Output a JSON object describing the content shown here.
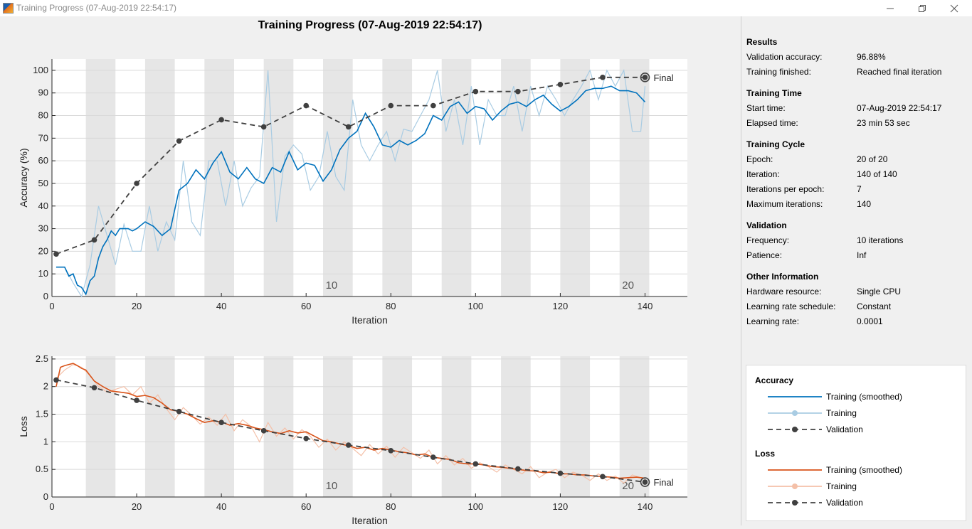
{
  "window": {
    "title": "Training Progress (07-Aug-2019 22:54:17)",
    "controls": {
      "minimize_icon": "minimize-icon",
      "restore_icon": "restore-icon",
      "close_icon": "close-icon"
    }
  },
  "colors": {
    "acc_smoothed": "#0072bd",
    "acc_training": "#a9cce3",
    "loss_smoothed": "#d95319",
    "loss_training": "#f4c0a8",
    "validation": "#404040",
    "epoch_band": "#e6e6e6",
    "grid": "#d9d9d9"
  },
  "chart_data": [
    {
      "type": "line",
      "title": "Training Progress (07-Aug-2019 22:54:17)",
      "xlabel": "Iteration",
      "ylabel": "Accuracy (%)",
      "xlim": [
        0,
        150
      ],
      "ylim": [
        0,
        105
      ],
      "xticks": [
        0,
        20,
        40,
        60,
        80,
        100,
        120,
        140
      ],
      "yticks": [
        0,
        10,
        20,
        30,
        40,
        50,
        60,
        70,
        80,
        90,
        100
      ],
      "grid": true,
      "epoch_shading": {
        "iterations_per_epoch": 7,
        "shaded_epochs": [
          2,
          4,
          6,
          8,
          10,
          12,
          14,
          16,
          18,
          20
        ]
      },
      "epoch_labels": [
        {
          "iteration": 66,
          "label": "10"
        },
        {
          "iteration": 136,
          "label": "20"
        }
      ],
      "final_label": "Final",
      "series": [
        {
          "name": "Training (smoothed)",
          "x": [
            1,
            2,
            3,
            4,
            5,
            6,
            7,
            8,
            9,
            10,
            11,
            12,
            13,
            14,
            15,
            16,
            17,
            18,
            19,
            20,
            22,
            24,
            26,
            28,
            30,
            32,
            34,
            36,
            38,
            40,
            42,
            44,
            46,
            48,
            50,
            52,
            54,
            56,
            58,
            60,
            62,
            64,
            66,
            68,
            70,
            72,
            74,
            76,
            78,
            80,
            82,
            84,
            86,
            88,
            90,
            92,
            94,
            96,
            98,
            100,
            102,
            104,
            106,
            108,
            110,
            112,
            114,
            116,
            118,
            120,
            122,
            124,
            126,
            128,
            130,
            132,
            134,
            136,
            138,
            140
          ],
          "y": [
            13,
            13,
            13,
            9,
            10,
            5,
            4,
            1,
            7,
            9,
            17,
            22,
            25,
            29,
            27,
            30,
            30,
            30,
            29,
            30,
            33,
            31,
            27,
            30,
            47,
            50,
            56,
            52,
            59,
            64,
            55,
            52,
            57,
            52,
            50,
            57,
            55,
            64,
            56,
            59,
            58,
            51,
            56,
            65,
            70,
            73,
            81,
            75,
            67,
            66,
            69,
            67,
            69,
            72,
            80,
            78,
            84,
            86,
            81,
            84,
            83,
            78,
            82,
            85,
            86,
            84,
            87,
            89,
            85,
            82,
            84,
            87,
            91,
            92,
            92,
            93,
            91,
            91,
            90,
            86
          ]
        },
        {
          "name": "Training",
          "x": [
            1,
            3,
            5,
            7,
            9,
            11,
            13,
            15,
            17,
            19,
            21,
            23,
            25,
            27,
            29,
            31,
            33,
            35,
            37,
            39,
            41,
            43,
            45,
            47,
            49,
            51,
            53,
            55,
            57,
            59,
            61,
            63,
            65,
            67,
            69,
            71,
            73,
            75,
            77,
            79,
            81,
            83,
            85,
            87,
            89,
            91,
            93,
            95,
            97,
            99,
            101,
            103,
            105,
            107,
            109,
            111,
            113,
            115,
            117,
            119,
            121,
            123,
            125,
            127,
            129,
            131,
            133,
            135,
            137,
            139,
            140
          ],
          "y": [
            13,
            13,
            6,
            0,
            14,
            40,
            27,
            14,
            32,
            20,
            20,
            40,
            20,
            33,
            25,
            60,
            33,
            27,
            60,
            60,
            40,
            60,
            40,
            48,
            53,
            100,
            33,
            62,
            67,
            63,
            47,
            53,
            73,
            53,
            47,
            87,
            67,
            60,
            67,
            73,
            60,
            74,
            73,
            80,
            87,
            100,
            73,
            87,
            67,
            93,
            67,
            87,
            80,
            80,
            93,
            73,
            93,
            80,
            93,
            87,
            80,
            87,
            93,
            100,
            87,
            100,
            93,
            100,
            73,
            73,
            93
          ]
        },
        {
          "name": "Validation",
          "x": [
            1,
            10,
            20,
            30,
            40,
            50,
            60,
            70,
            80,
            90,
            100,
            110,
            120,
            130,
            140
          ],
          "y": [
            18.75,
            25,
            50,
            68.75,
            78.13,
            75,
            84.38,
            75,
            84.38,
            84.38,
            90.63,
            90.63,
            93.75,
            96.88,
            96.88
          ]
        }
      ]
    },
    {
      "type": "line",
      "xlabel": "Iteration",
      "ylabel": "Loss",
      "xlim": [
        0,
        150
      ],
      "ylim": [
        0,
        2.55
      ],
      "xticks": [
        0,
        20,
        40,
        60,
        80,
        100,
        120,
        140
      ],
      "yticks": [
        0,
        0.5,
        1,
        1.5,
        2,
        2.5
      ],
      "grid": true,
      "epoch_shading": {
        "iterations_per_epoch": 7,
        "shaded_epochs": [
          2,
          4,
          6,
          8,
          10,
          12,
          14,
          16,
          18,
          20
        ]
      },
      "epoch_labels": [
        {
          "iteration": 66,
          "label": "10"
        },
        {
          "iteration": 136,
          "label": "20"
        }
      ],
      "final_label": "Final",
      "series": [
        {
          "name": "Training (smoothed)",
          "x": [
            1,
            2,
            3,
            4,
            5,
            6,
            7,
            8,
            10,
            12,
            14,
            16,
            18,
            20,
            22,
            24,
            26,
            28,
            30,
            32,
            34,
            36,
            38,
            40,
            42,
            44,
            46,
            48,
            50,
            52,
            54,
            56,
            58,
            60,
            62,
            64,
            66,
            68,
            70,
            72,
            74,
            76,
            78,
            80,
            82,
            84,
            86,
            88,
            90,
            92,
            94,
            96,
            98,
            100,
            102,
            104,
            106,
            108,
            110,
            112,
            114,
            116,
            118,
            120,
            122,
            124,
            126,
            128,
            130,
            132,
            134,
            136,
            138,
            140
          ],
          "y": [
            2.0,
            2.35,
            2.38,
            2.4,
            2.42,
            2.38,
            2.33,
            2.3,
            2.1,
            2.0,
            1.92,
            1.9,
            1.88,
            1.82,
            1.84,
            1.8,
            1.7,
            1.58,
            1.55,
            1.5,
            1.42,
            1.35,
            1.38,
            1.36,
            1.3,
            1.33,
            1.3,
            1.25,
            1.22,
            1.18,
            1.15,
            1.2,
            1.16,
            1.18,
            1.1,
            1.02,
            1.0,
            0.96,
            0.93,
            0.88,
            0.9,
            0.85,
            0.88,
            0.85,
            0.82,
            0.8,
            0.76,
            0.78,
            0.72,
            0.7,
            0.68,
            0.62,
            0.6,
            0.6,
            0.58,
            0.55,
            0.54,
            0.52,
            0.5,
            0.48,
            0.47,
            0.44,
            0.45,
            0.42,
            0.42,
            0.4,
            0.4,
            0.38,
            0.37,
            0.36,
            0.34,
            0.35,
            0.36,
            0.34
          ]
        },
        {
          "name": "Training",
          "x": [
            1,
            3,
            5,
            7,
            9,
            11,
            13,
            15,
            17,
            19,
            21,
            23,
            25,
            27,
            29,
            31,
            33,
            35,
            37,
            39,
            41,
            43,
            45,
            47,
            49,
            51,
            53,
            55,
            57,
            59,
            61,
            63,
            65,
            67,
            69,
            71,
            73,
            75,
            77,
            79,
            81,
            83,
            85,
            87,
            89,
            91,
            93,
            95,
            97,
            99,
            101,
            103,
            105,
            107,
            109,
            111,
            113,
            115,
            117,
            119,
            121,
            123,
            125,
            127,
            129,
            131,
            133,
            135,
            137,
            139
          ],
          "y": [
            2.15,
            2.3,
            2.4,
            2.35,
            2.2,
            2.0,
            1.9,
            1.95,
            2.0,
            1.85,
            2.0,
            1.7,
            1.85,
            1.6,
            1.4,
            1.62,
            1.48,
            1.32,
            1.45,
            1.3,
            1.5,
            1.2,
            1.4,
            1.28,
            1.0,
            1.35,
            1.1,
            1.25,
            1.05,
            1.22,
            1.1,
            0.9,
            1.05,
            0.85,
            1.0,
            0.88,
            0.75,
            0.95,
            0.78,
            0.92,
            0.72,
            0.9,
            0.8,
            0.7,
            0.85,
            0.6,
            0.75,
            0.58,
            0.7,
            0.52,
            0.62,
            0.55,
            0.45,
            0.58,
            0.5,
            0.42,
            0.55,
            0.35,
            0.45,
            0.5,
            0.35,
            0.45,
            0.4,
            0.3,
            0.42,
            0.3,
            0.38,
            0.25,
            0.4,
            0.35
          ]
        },
        {
          "name": "Validation",
          "x": [
            1,
            10,
            20,
            30,
            40,
            50,
            60,
            70,
            80,
            90,
            100,
            110,
            120,
            130,
            140
          ],
          "y": [
            2.12,
            1.98,
            1.75,
            1.55,
            1.35,
            1.2,
            1.06,
            0.94,
            0.84,
            0.72,
            0.6,
            0.51,
            0.43,
            0.37,
            0.27
          ]
        }
      ]
    }
  ],
  "panel": {
    "sections": [
      {
        "title": "Results",
        "rows": [
          {
            "label": "Validation accuracy:",
            "value": "96.88%"
          },
          {
            "label": "Training finished:",
            "value": "Reached final iteration"
          }
        ]
      },
      {
        "title": "Training Time",
        "rows": [
          {
            "label": "Start time:",
            "value": "07-Aug-2019 22:54:17"
          },
          {
            "label": "Elapsed time:",
            "value": "23 min 53 sec"
          }
        ]
      },
      {
        "title": "Training Cycle",
        "rows": [
          {
            "label": "Epoch:",
            "value": "20 of 20"
          },
          {
            "label": "Iteration:",
            "value": "140 of 140"
          },
          {
            "label": "Iterations per epoch:",
            "value": "7"
          },
          {
            "label": "Maximum iterations:",
            "value": "140"
          }
        ]
      },
      {
        "title": "Validation",
        "rows": [
          {
            "label": "Frequency:",
            "value": "10 iterations"
          },
          {
            "label": "Patience:",
            "value": "Inf"
          }
        ]
      },
      {
        "title": "Other Information",
        "rows": [
          {
            "label": "Hardware resource:",
            "value": "Single CPU"
          },
          {
            "label": "Learning rate schedule:",
            "value": "Constant"
          },
          {
            "label": "Learning rate:",
            "value": "0.0001"
          }
        ]
      }
    ]
  },
  "legend": {
    "accuracy_title": "Accuracy",
    "loss_title": "Loss",
    "accuracy_items": [
      {
        "label": "Training (smoothed)",
        "style": "line",
        "color": "#0072bd"
      },
      {
        "label": "Training",
        "style": "line-dot",
        "color": "#a9cce3"
      },
      {
        "label": "Validation",
        "style": "dashed-dot",
        "color": "#404040"
      }
    ],
    "loss_items": [
      {
        "label": "Training (smoothed)",
        "style": "line",
        "color": "#d95319"
      },
      {
        "label": "Training",
        "style": "line-dot",
        "color": "#f4c0a8"
      },
      {
        "label": "Validation",
        "style": "dashed-dot",
        "color": "#404040"
      }
    ]
  }
}
